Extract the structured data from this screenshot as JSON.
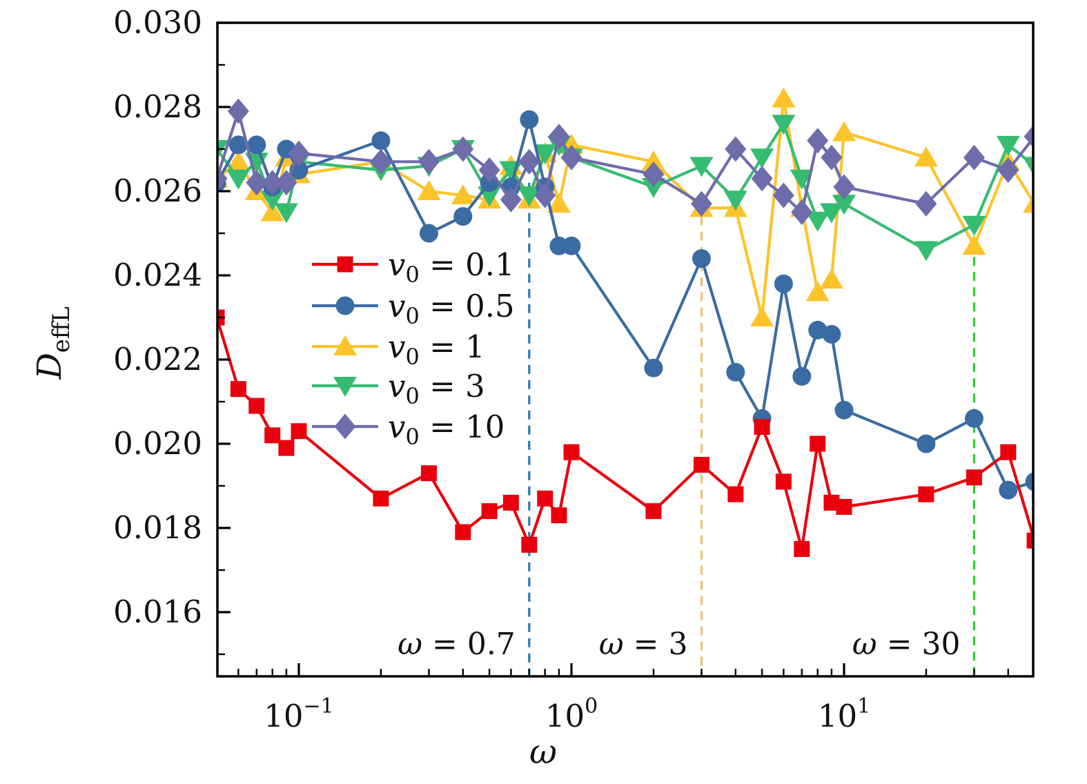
{
  "chart_data": {
    "type": "line",
    "title": "",
    "xlabel": "ω",
    "ylabel_main": "D",
    "ylabel_sub": "effL",
    "x_scale": "log",
    "xlim": [
      0.05,
      50
    ],
    "ylim": [
      0.0145,
      0.03
    ],
    "grid": false,
    "legend_position": "upper-left-inside",
    "x_major_ticks": [
      {
        "value": 0.1,
        "base": "10",
        "exp": "−1"
      },
      {
        "value": 1,
        "base": "10",
        "exp": "0"
      },
      {
        "value": 10,
        "base": "10",
        "exp": "1"
      }
    ],
    "x_minor_ticks": [
      0.06,
      0.07,
      0.08,
      0.09,
      0.2,
      0.3,
      0.4,
      0.5,
      0.6,
      0.7,
      0.8,
      0.9,
      2,
      3,
      4,
      5,
      6,
      7,
      8,
      9,
      20,
      30,
      40
    ],
    "y_major_ticks": [
      0.016,
      0.018,
      0.02,
      0.022,
      0.024,
      0.026,
      0.028,
      0.03
    ],
    "y_minor_ticks": [
      0.015,
      0.017,
      0.019,
      0.021,
      0.023,
      0.025,
      0.027,
      0.029
    ],
    "x": [
      0.05,
      0.06,
      0.07,
      0.08,
      0.09,
      0.1,
      0.2,
      0.3,
      0.4,
      0.5,
      0.6,
      0.7,
      0.8,
      0.9,
      1,
      2,
      3,
      4,
      5,
      6,
      7,
      8,
      9,
      10,
      20,
      30,
      40,
      50
    ],
    "series": [
      {
        "name_pre": "v",
        "name_sub": "0",
        "name_post": " = 0.1",
        "marker": "square",
        "color": "#e8000d",
        "values": [
          0.023,
          0.0213,
          0.0209,
          0.0202,
          0.0199,
          0.0203,
          0.0187,
          0.0193,
          0.0179,
          0.0184,
          0.0186,
          0.0176,
          0.0187,
          0.0183,
          0.0198,
          0.0184,
          0.0195,
          0.0188,
          0.0204,
          0.0191,
          0.0175,
          0.02,
          0.0186,
          0.0185,
          0.0188,
          0.0192,
          0.0198,
          0.0177
        ]
      },
      {
        "name_pre": "v",
        "name_sub": "0",
        "name_post": " = 0.5",
        "marker": "circle",
        "color": "#3b6ba3",
        "values": [
          0.0262,
          0.0271,
          0.0271,
          0.0261,
          0.027,
          0.0265,
          0.0272,
          0.025,
          0.0254,
          0.0262,
          0.0261,
          0.0277,
          0.0261,
          0.0247,
          0.0247,
          0.0218,
          0.0244,
          0.0217,
          0.0206,
          0.0238,
          0.0216,
          0.0227,
          0.0226,
          0.0208,
          0.02,
          0.0206,
          0.0189,
          0.0191
        ]
      },
      {
        "name_pre": "v",
        "name_sub": "0",
        "name_post": " = 1",
        "marker": "triangle-up",
        "color": "#fdc32a",
        "values": [
          0.0263,
          0.0267,
          0.026,
          0.0255,
          0.0268,
          0.0264,
          0.0267,
          0.026,
          0.0259,
          0.0258,
          0.0266,
          0.0258,
          0.0269,
          0.0257,
          0.0271,
          0.0267,
          0.0256,
          0.0256,
          0.023,
          0.0282,
          0.0256,
          0.0236,
          0.0239,
          0.0274,
          0.0268,
          0.0247,
          0.0267,
          0.0257
        ]
      },
      {
        "name_pre": "v",
        "name_sub": "0",
        "name_post": " = 3",
        "marker": "triangle-down",
        "color": "#36bc70",
        "values": [
          0.027,
          0.0263,
          0.0267,
          0.0258,
          0.0255,
          0.0267,
          0.0265,
          0.0266,
          0.027,
          0.0259,
          0.0265,
          0.0259,
          0.0269,
          0.0271,
          0.0268,
          0.0261,
          0.0266,
          0.0258,
          0.0268,
          0.0276,
          0.0263,
          0.0253,
          0.0255,
          0.0257,
          0.0246,
          0.0252,
          0.0271,
          0.0266
        ]
      },
      {
        "name_pre": "v",
        "name_sub": "0",
        "name_post": " = 10",
        "marker": "diamond",
        "color": "#6e6cab",
        "values": [
          0.0263,
          0.0279,
          0.0262,
          0.0262,
          0.0262,
          0.0269,
          0.0267,
          0.0267,
          0.027,
          0.0265,
          0.0258,
          0.0267,
          0.0259,
          0.0273,
          0.0268,
          0.0264,
          0.0257,
          0.027,
          0.0263,
          0.0259,
          0.0255,
          0.0272,
          0.0268,
          0.0261,
          0.0257,
          0.0268,
          0.0265,
          0.0273
        ]
      }
    ],
    "vlines": [
      {
        "sym": "ω",
        "rest": " = 0.7",
        "x": 0.7,
        "color": "#2679b0",
        "top": 0.0262
      },
      {
        "sym": "ω",
        "rest": " = 3",
        "x": 3,
        "color": "#e9c472",
        "top": 0.0254
      },
      {
        "sym": "ω",
        "rest": " = 30",
        "x": 30,
        "color": "#2ed02e",
        "top": 0.0248
      }
    ]
  }
}
